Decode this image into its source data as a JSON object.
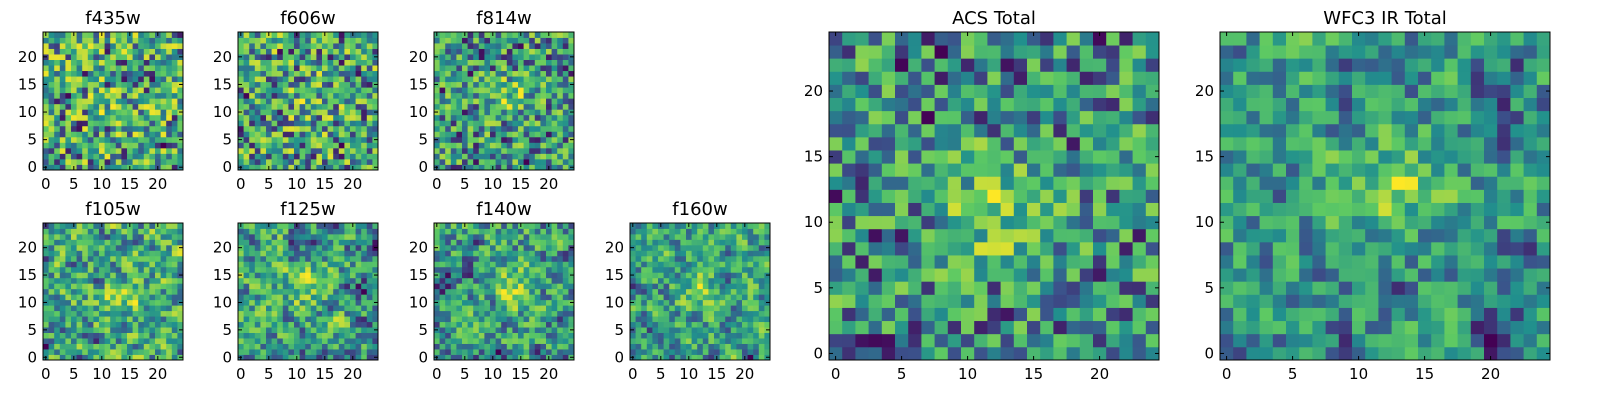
{
  "chart_data": [
    {
      "type": "heatmap",
      "title": "f435w",
      "colormap": "viridis",
      "grid": false,
      "size": [
        25,
        25
      ],
      "seed": 11,
      "texture": "speckle",
      "blob_center": [
        13,
        11
      ],
      "blob_strength": 0.1,
      "xlim": [
        -0.5,
        24.5
      ],
      "ylim": [
        -0.5,
        24.5
      ],
      "xticks": [
        "0",
        "5",
        "10",
        "15",
        "20"
      ],
      "yticks": [
        "0",
        "5",
        "10",
        "15",
        "20"
      ]
    },
    {
      "type": "heatmap",
      "title": "f606w",
      "colormap": "viridis",
      "grid": false,
      "size": [
        25,
        25
      ],
      "seed": 23,
      "texture": "speckle",
      "blob_center": [
        12,
        12
      ],
      "blob_strength": 0.15,
      "xlim": [
        -0.5,
        24.5
      ],
      "ylim": [
        -0.5,
        24.5
      ],
      "xticks": [
        "0",
        "5",
        "10",
        "15",
        "20"
      ],
      "yticks": [
        "0",
        "5",
        "10",
        "15",
        "20"
      ]
    },
    {
      "type": "heatmap",
      "title": "f814w",
      "colormap": "viridis",
      "grid": false,
      "size": [
        25,
        25
      ],
      "seed": 37,
      "texture": "speckle",
      "blob_center": [
        13,
        13
      ],
      "blob_strength": 0.3,
      "xlim": [
        -0.5,
        24.5
      ],
      "ylim": [
        -0.5,
        24.5
      ],
      "xticks": [
        "0",
        "5",
        "10",
        "15",
        "20"
      ],
      "yticks": [
        "0",
        "5",
        "10",
        "15",
        "20"
      ]
    },
    {
      "type": "heatmap",
      "title": "f105w",
      "colormap": "viridis",
      "grid": false,
      "size": [
        25,
        25
      ],
      "seed": 41,
      "texture": "smooth",
      "blob_center": [
        14,
        11
      ],
      "blob_strength": 0.25,
      "xlim": [
        -0.5,
        24.5
      ],
      "ylim": [
        -0.5,
        24.5
      ],
      "xticks": [
        "0",
        "5",
        "10",
        "15",
        "20"
      ],
      "yticks": [
        "0",
        "5",
        "10",
        "15",
        "20"
      ]
    },
    {
      "type": "heatmap",
      "title": "f125w",
      "colormap": "viridis",
      "grid": false,
      "size": [
        25,
        25
      ],
      "seed": 53,
      "texture": "smooth",
      "blob_center": [
        12,
        13
      ],
      "blob_strength": 0.2,
      "xlim": [
        -0.5,
        24.5
      ],
      "ylim": [
        -0.5,
        24.5
      ],
      "xticks": [
        "0",
        "5",
        "10",
        "15",
        "20"
      ],
      "yticks": [
        "0",
        "5",
        "10",
        "15",
        "20"
      ]
    },
    {
      "type": "heatmap",
      "title": "f140w",
      "colormap": "viridis",
      "grid": false,
      "size": [
        25,
        25
      ],
      "seed": 67,
      "texture": "smooth",
      "blob_center": [
        14,
        13
      ],
      "blob_strength": 0.3,
      "xlim": [
        -0.5,
        24.5
      ],
      "ylim": [
        -0.5,
        24.5
      ],
      "xticks": [
        "0",
        "5",
        "10",
        "15",
        "20"
      ],
      "yticks": [
        "0",
        "5",
        "10",
        "15",
        "20"
      ]
    },
    {
      "type": "heatmap",
      "title": "f160w",
      "colormap": "viridis",
      "grid": false,
      "size": [
        25,
        25
      ],
      "seed": 79,
      "texture": "smooth",
      "blob_center": [
        12,
        12
      ],
      "blob_strength": 0.25,
      "xlim": [
        -0.5,
        24.5
      ],
      "ylim": [
        -0.5,
        24.5
      ],
      "xticks": [
        "0",
        "5",
        "10",
        "15",
        "20"
      ],
      "yticks": [
        "0",
        "5",
        "10",
        "15",
        "20"
      ]
    },
    {
      "type": "heatmap",
      "title": "ACS Total",
      "colormap": "viridis",
      "grid": false,
      "size": [
        25,
        25
      ],
      "seed": 97,
      "texture": "speckle",
      "blob_center": [
        12,
        11
      ],
      "blob_strength": 0.45,
      "xlim": [
        -0.5,
        24.5
      ],
      "ylim": [
        -0.5,
        24.5
      ],
      "xticks": [
        "0",
        "5",
        "10",
        "15",
        "20"
      ],
      "yticks": [
        "0",
        "5",
        "10",
        "15",
        "20"
      ]
    },
    {
      "type": "heatmap",
      "title": "WFC3 IR Total",
      "colormap": "viridis",
      "grid": false,
      "size": [
        25,
        25
      ],
      "seed": 131,
      "texture": "smooth",
      "blob_center": [
        13,
        13
      ],
      "blob_strength": 0.4,
      "xlim": [
        -0.5,
        24.5
      ],
      "ylim": [
        -0.5,
        24.5
      ],
      "xticks": [
        "0",
        "5",
        "10",
        "15",
        "20"
      ],
      "yticks": [
        "0",
        "5",
        "10",
        "15",
        "20"
      ]
    }
  ],
  "colors": {
    "axis": "#000000",
    "background": "#ffffff",
    "viridis_stops": [
      "#440154",
      "#3b528b",
      "#21908d",
      "#5dc963",
      "#fde725"
    ]
  }
}
